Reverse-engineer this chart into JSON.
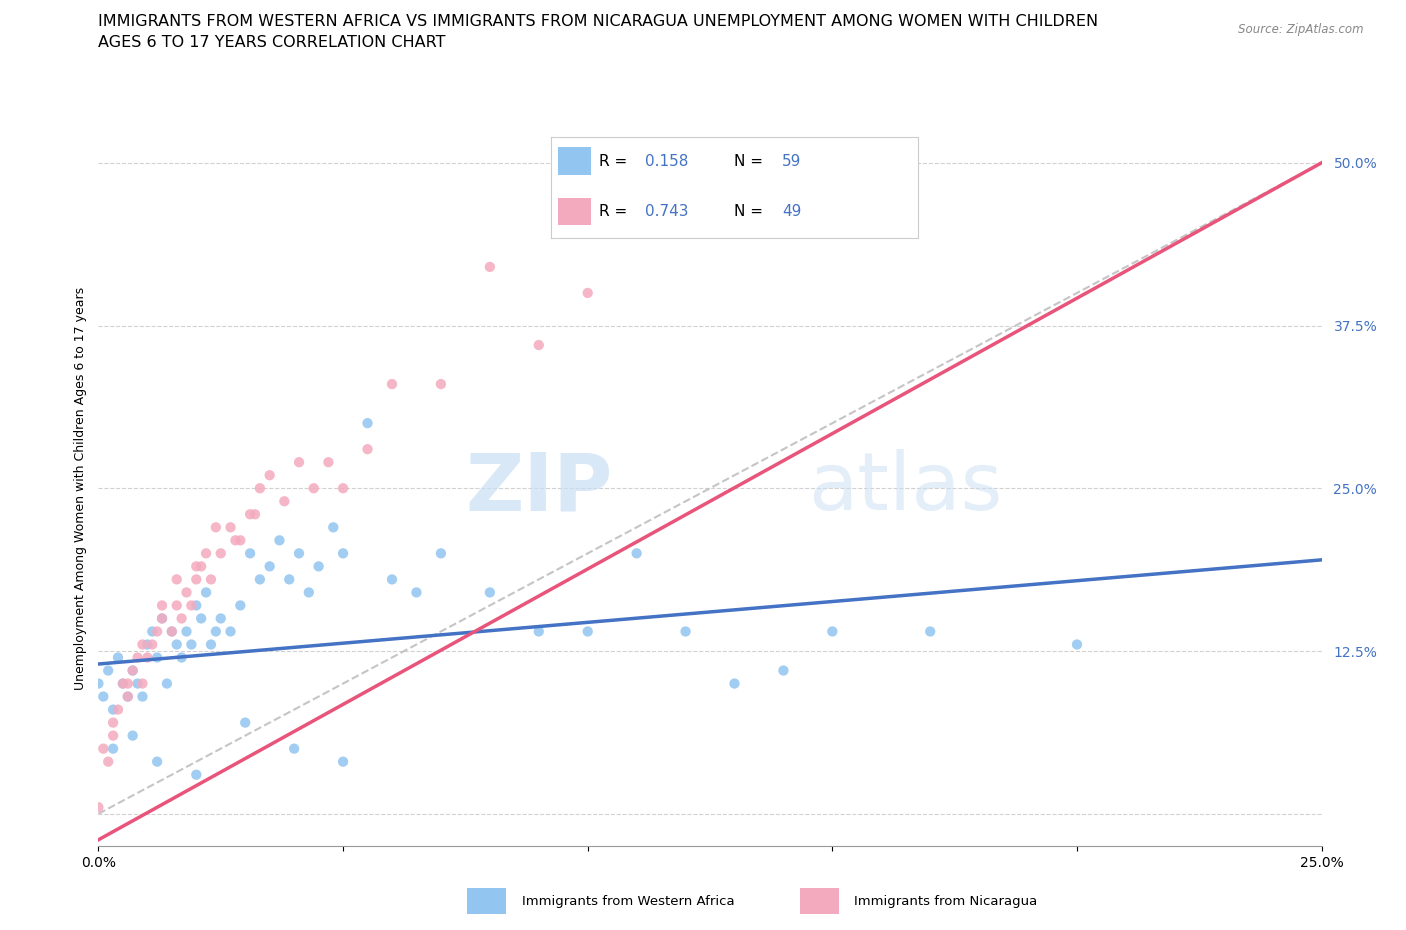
{
  "title_line1": "IMMIGRANTS FROM WESTERN AFRICA VS IMMIGRANTS FROM NICARAGUA UNEMPLOYMENT AMONG WOMEN WITH CHILDREN",
  "title_line2": "AGES 6 TO 17 YEARS CORRELATION CHART",
  "source": "Source: ZipAtlas.com",
  "ylabel": "Unemployment Among Women with Children Ages 6 to 17 years",
  "xlim": [
    0.0,
    0.25
  ],
  "ylim": [
    -0.025,
    0.525
  ],
  "ytick_positions": [
    0.0,
    0.125,
    0.25,
    0.375,
    0.5
  ],
  "yticklabels": [
    "",
    "12.5%",
    "25.0%",
    "37.5%",
    "50.0%"
  ],
  "R_blue": 0.158,
  "N_blue": 59,
  "R_pink": 0.743,
  "N_pink": 49,
  "blue_color": "#92C5F0",
  "pink_color": "#F4AABE",
  "blue_line_color": "#4472C4",
  "pink_line_color": "#E8547A",
  "diagonal_color": "#BBBBBB",
  "watermark_zip": "ZIP",
  "watermark_atlas": "atlas",
  "legend_label_blue": "Immigrants from Western Africa",
  "legend_label_pink": "Immigrants from Nicaragua",
  "grid_color": "#CCCCCC",
  "title_fontsize": 11.5,
  "axis_label_fontsize": 9,
  "tick_fontsize": 10,
  "blue_x": [
    0.0,
    0.001,
    0.002,
    0.003,
    0.004,
    0.005,
    0.006,
    0.007,
    0.008,
    0.009,
    0.01,
    0.011,
    0.012,
    0.013,
    0.014,
    0.015,
    0.016,
    0.017,
    0.018,
    0.019,
    0.02,
    0.021,
    0.022,
    0.023,
    0.024,
    0.025,
    0.027,
    0.029,
    0.031,
    0.033,
    0.035,
    0.037,
    0.039,
    0.041,
    0.043,
    0.045,
    0.048,
    0.05,
    0.055,
    0.06,
    0.065,
    0.07,
    0.08,
    0.09,
    0.1,
    0.11,
    0.12,
    0.13,
    0.14,
    0.15,
    0.17,
    0.2,
    0.003,
    0.007,
    0.012,
    0.02,
    0.03,
    0.04,
    0.05
  ],
  "blue_y": [
    0.1,
    0.09,
    0.11,
    0.08,
    0.12,
    0.1,
    0.09,
    0.11,
    0.1,
    0.09,
    0.13,
    0.14,
    0.12,
    0.15,
    0.1,
    0.14,
    0.13,
    0.12,
    0.14,
    0.13,
    0.16,
    0.15,
    0.17,
    0.13,
    0.14,
    0.15,
    0.14,
    0.16,
    0.2,
    0.18,
    0.19,
    0.21,
    0.18,
    0.2,
    0.17,
    0.19,
    0.22,
    0.2,
    0.3,
    0.18,
    0.17,
    0.2,
    0.17,
    0.14,
    0.14,
    0.2,
    0.14,
    0.1,
    0.11,
    0.14,
    0.14,
    0.13,
    0.05,
    0.06,
    0.04,
    0.03,
    0.07,
    0.05,
    0.04
  ],
  "pink_x": [
    0.0,
    0.001,
    0.002,
    0.003,
    0.004,
    0.005,
    0.006,
    0.007,
    0.008,
    0.009,
    0.01,
    0.011,
    0.012,
    0.013,
    0.015,
    0.016,
    0.017,
    0.018,
    0.019,
    0.02,
    0.021,
    0.022,
    0.023,
    0.025,
    0.027,
    0.029,
    0.031,
    0.033,
    0.035,
    0.038,
    0.041,
    0.044,
    0.047,
    0.05,
    0.055,
    0.06,
    0.07,
    0.08,
    0.09,
    0.1,
    0.003,
    0.006,
    0.009,
    0.013,
    0.016,
    0.02,
    0.024,
    0.028,
    0.032
  ],
  "pink_y": [
    0.005,
    0.05,
    0.04,
    0.07,
    0.08,
    0.1,
    0.09,
    0.11,
    0.12,
    0.1,
    0.12,
    0.13,
    0.14,
    0.15,
    0.14,
    0.16,
    0.15,
    0.17,
    0.16,
    0.18,
    0.19,
    0.2,
    0.18,
    0.2,
    0.22,
    0.21,
    0.23,
    0.25,
    0.26,
    0.24,
    0.27,
    0.25,
    0.27,
    0.25,
    0.28,
    0.33,
    0.33,
    0.42,
    0.36,
    0.4,
    0.06,
    0.1,
    0.13,
    0.16,
    0.18,
    0.19,
    0.22,
    0.21,
    0.23
  ],
  "blue_trend_x": [
    0.0,
    0.25
  ],
  "blue_trend_y": [
    0.115,
    0.195
  ],
  "pink_trend_x": [
    0.0,
    0.25
  ],
  "pink_trend_y": [
    -0.02,
    0.5
  ]
}
